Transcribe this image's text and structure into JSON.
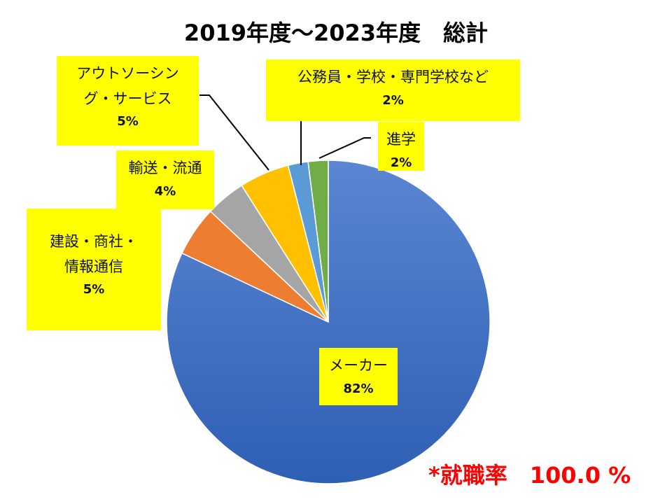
{
  "chart_data": {
    "type": "pie",
    "title": "2019年度～2023年度　総計",
    "slices": [
      {
        "label": "メーカー",
        "label_lines": [
          "メーカー"
        ],
        "value": 82,
        "value_label": "82%",
        "color": "#4472c4"
      },
      {
        "label": "建設・商社・情報通信",
        "label_lines": [
          "建設・商社・",
          "情報通信"
        ],
        "value": 5,
        "value_label": "5%",
        "color": "#ed7d31"
      },
      {
        "label": "輸送・流通",
        "label_lines": [
          "輸送・流通"
        ],
        "value": 4,
        "value_label": "4%",
        "color": "#a5a5a5"
      },
      {
        "label": "アウトソーシング・サービス",
        "label_lines": [
          "アウトソーシン",
          "グ・サービス"
        ],
        "value": 5,
        "value_label": "5%",
        "color": "#ffc000"
      },
      {
        "label": "公務員・学校・専門学校など",
        "label_lines": [
          "公務員・学校・専門学校など"
        ],
        "value": 2,
        "value_label": "2%",
        "color": "#5b9bd5"
      },
      {
        "label": "進学",
        "label_lines": [
          "進学"
        ],
        "value": 2,
        "value_label": "2%",
        "color": "#70ad47"
      }
    ],
    "legend": "none"
  },
  "note": {
    "text": "*就職率　100.0 %",
    "color": "#ff0000"
  },
  "colors": {
    "label_box": "#ffff00",
    "leader_line": "#000000"
  }
}
